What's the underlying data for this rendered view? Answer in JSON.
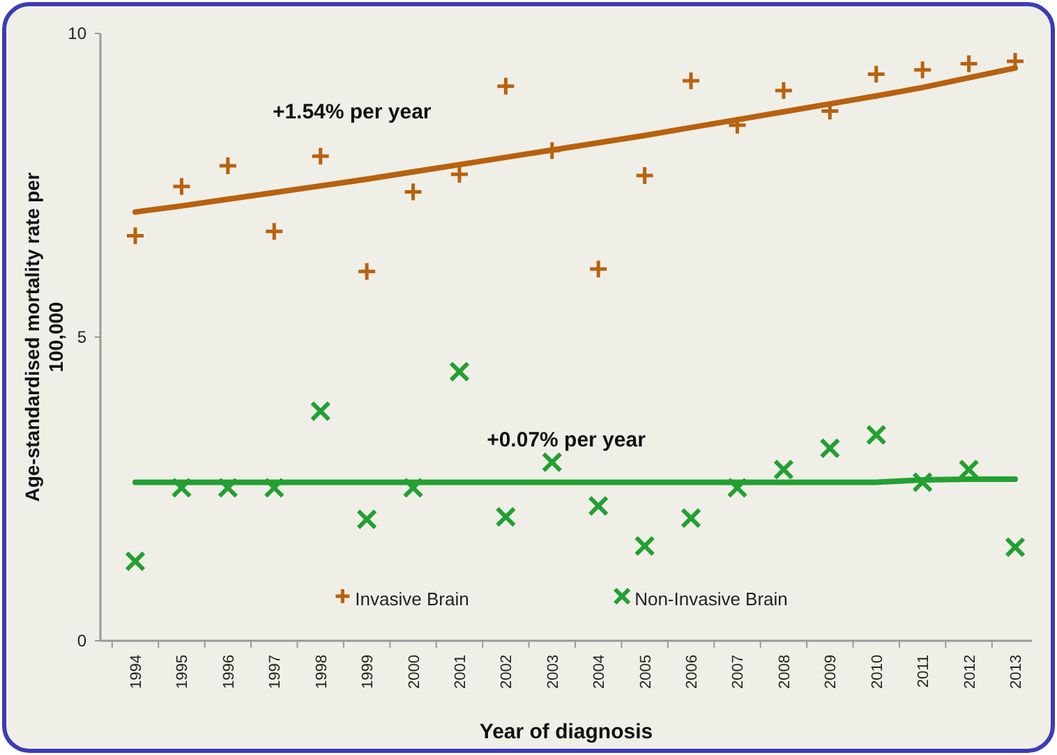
{
  "chart_data": {
    "type": "scatter",
    "xlabel": "Year of diagnosis",
    "ylabel": "Age-standardised mortality rate per 100,000",
    "categories": [
      "1994",
      "1995",
      "1996",
      "1997",
      "1998",
      "1999",
      "2000",
      "2001",
      "2002",
      "2003",
      "2004",
      "2005",
      "2006",
      "2007",
      "2008",
      "2009",
      "2010",
      "2011",
      "2012",
      "2013"
    ],
    "ylim": [
      0,
      10
    ],
    "yticks": [
      0,
      5,
      10
    ],
    "grid": false,
    "legend": "bottom",
    "annotations": [
      "+1.54% per year",
      "+0.07% per year"
    ],
    "series": [
      {
        "name": "Invasive Brain",
        "marker": "plus",
        "color": "#b8610f",
        "values": [
          6.67,
          7.48,
          7.82,
          6.74,
          7.98,
          6.08,
          7.39,
          7.68,
          9.13,
          8.07,
          6.12,
          7.66,
          9.22,
          8.49,
          9.06,
          8.72,
          9.33,
          9.4,
          9.5,
          9.54
        ]
      },
      {
        "name": "Non-Invasive Brain",
        "marker": "cross",
        "color": "#22a032",
        "values": [
          1.31,
          2.52,
          2.52,
          2.52,
          3.78,
          2.0,
          2.52,
          4.43,
          2.04,
          2.94,
          2.22,
          1.56,
          2.02,
          2.52,
          2.82,
          3.17,
          3.39,
          2.61,
          2.82,
          1.54
        ]
      },
      {
        "type": "line",
        "color": "#b8610f",
        "values": [
          7.06,
          7.16,
          7.27,
          7.38,
          7.49,
          7.6,
          7.72,
          7.84,
          7.96,
          8.08,
          8.2,
          8.32,
          8.45,
          8.58,
          8.71,
          8.84,
          8.97,
          9.11,
          9.27,
          9.43
        ]
      },
      {
        "type": "line",
        "color": "#22a032",
        "values": [
          2.61,
          2.61,
          2.61,
          2.61,
          2.61,
          2.61,
          2.61,
          2.61,
          2.61,
          2.61,
          2.61,
          2.61,
          2.61,
          2.61,
          2.61,
          2.61,
          2.61,
          2.65,
          2.66,
          2.66
        ]
      }
    ]
  }
}
